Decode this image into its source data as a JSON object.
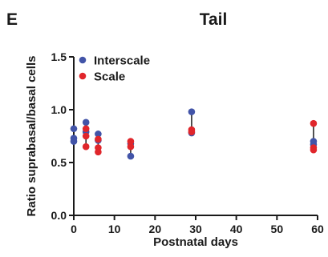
{
  "panel_label": "E",
  "chart_data": {
    "type": "scatter",
    "title": "Tail",
    "xlabel": "Postnatal days",
    "ylabel": "Ratio suprabasal/basal cells",
    "xlim": [
      0,
      60
    ],
    "ylim": [
      0,
      1.5
    ],
    "x_ticks": [
      0,
      10,
      20,
      30,
      40,
      50,
      60
    ],
    "y_ticks": [
      0.0,
      0.5,
      1.0,
      1.5
    ],
    "x_tick_labels": [
      "0",
      "10",
      "20",
      "30",
      "40",
      "50",
      "60"
    ],
    "y_tick_labels": [
      "0.0",
      "0.5",
      "1.0",
      "1.5"
    ],
    "legend_position": "top-left",
    "grid": false,
    "series": [
      {
        "name": "Interscale",
        "color": "#4254a8",
        "points": [
          {
            "x": 0,
            "y": 0.82
          },
          {
            "x": 0,
            "y": 0.73
          },
          {
            "x": 0,
            "y": 0.7
          },
          {
            "x": 3,
            "y": 0.88
          },
          {
            "x": 3,
            "y": 0.79
          },
          {
            "x": 6,
            "y": 0.77
          },
          {
            "x": 6,
            "y": 0.71
          },
          {
            "x": 14,
            "y": 0.68
          },
          {
            "x": 14,
            "y": 0.56
          },
          {
            "x": 29,
            "y": 0.98
          },
          {
            "x": 29,
            "y": 0.78
          },
          {
            "x": 59,
            "y": 0.7
          },
          {
            "x": 59,
            "y": 0.67
          }
        ]
      },
      {
        "name": "Scale",
        "color": "#e0262b",
        "points": [
          {
            "x": 3,
            "y": 0.82
          },
          {
            "x": 3,
            "y": 0.75
          },
          {
            "x": 3,
            "y": 0.65
          },
          {
            "x": 6,
            "y": 0.72
          },
          {
            "x": 6,
            "y": 0.64
          },
          {
            "x": 6,
            "y": 0.6
          },
          {
            "x": 14,
            "y": 0.7
          },
          {
            "x": 14,
            "y": 0.65
          },
          {
            "x": 29,
            "y": 0.81
          },
          {
            "x": 29,
            "y": 0.79
          },
          {
            "x": 59,
            "y": 0.87
          },
          {
            "x": 59,
            "y": 0.64
          },
          {
            "x": 59,
            "y": 0.62
          }
        ]
      }
    ]
  }
}
